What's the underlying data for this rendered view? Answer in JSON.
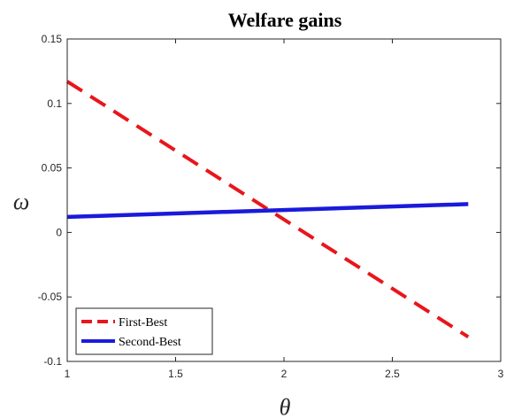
{
  "chart_data": {
    "type": "line",
    "title": "Welfare gains",
    "xlabel": "θ",
    "ylabel": "ω",
    "xlim": [
      1,
      3
    ],
    "ylim": [
      -0.1,
      0.15
    ],
    "x_ticks": [
      1,
      1.5,
      2,
      2.5,
      3
    ],
    "x_tick_labels": [
      "1",
      "1.5",
      "2",
      "2.5",
      "3"
    ],
    "y_ticks": [
      -0.1,
      -0.05,
      0,
      0.05,
      0.1,
      0.15
    ],
    "y_tick_labels": [
      "-0.1",
      "-0.05",
      "0",
      "0.05",
      "0.1",
      "0.15"
    ],
    "grid": false,
    "legend_position": "bottom-left",
    "series": [
      {
        "name": "First-Best",
        "color": "#e8161b",
        "style": "dashed",
        "x": [
          1,
          2.85
        ],
        "y": [
          0.117,
          -0.081
        ]
      },
      {
        "name": "Second-Best",
        "color": "#1a1adb",
        "style": "solid",
        "x": [
          1,
          2.85
        ],
        "y": [
          0.012,
          0.022
        ]
      }
    ]
  }
}
